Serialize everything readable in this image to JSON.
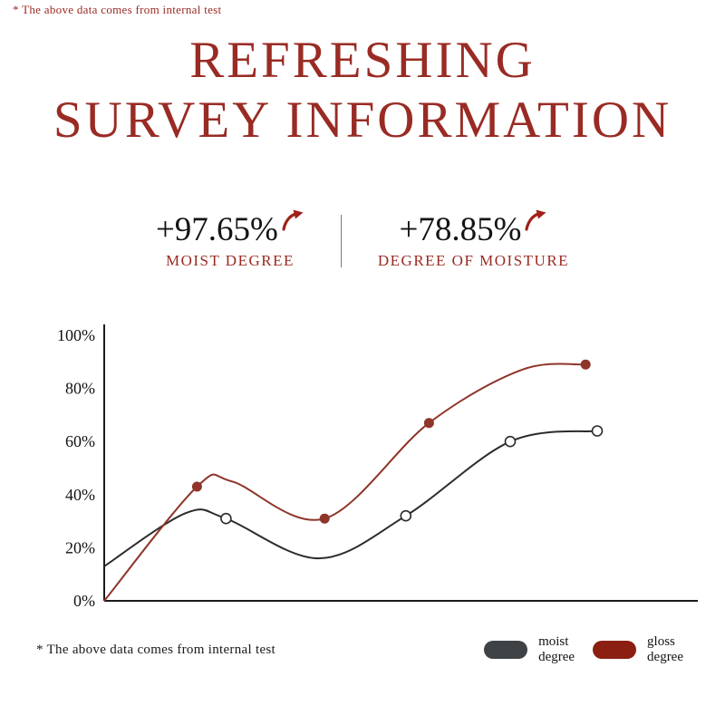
{
  "top_note": "* The above data comes from internal test",
  "title": {
    "line1": "REFRESHING",
    "line2": "SURVEY INFORMATION"
  },
  "colors": {
    "accent": "#992b24",
    "arrow": "#a02118",
    "text": "#141414"
  },
  "stats": [
    {
      "value": "+97.65%",
      "label": "MOIST DEGREE"
    },
    {
      "value": "+78.85%",
      "label": "DEGREE OF MOISTURE"
    }
  ],
  "footnote": "*  The above data comes from internal test",
  "legend": [
    {
      "line1": "moist",
      "line2": "degree",
      "color": "#3f4245"
    },
    {
      "line1": "gloss",
      "line2": "degree",
      "color": "#8b1f12"
    }
  ],
  "chart_data": {
    "type": "line",
    "title": "",
    "xlabel": "",
    "ylabel": "",
    "ylim": [
      0,
      100
    ],
    "grid": false,
    "legend_position": "bottom-right",
    "axis_color": "#1a1a1a",
    "yticks": [
      {
        "label": "0%",
        "value": 0
      },
      {
        "label": "20%",
        "value": 20
      },
      {
        "label": "40%",
        "value": 40
      },
      {
        "label": "60%",
        "value": 60
      },
      {
        "label": "80%",
        "value": 80
      },
      {
        "label": "100%",
        "value": 100
      }
    ],
    "series": [
      {
        "id": "moist",
        "name": "moist degree",
        "color": "#2b2b2b",
        "marker": "open",
        "points": [
          {
            "x": 0,
            "y": 13,
            "dot": false
          },
          {
            "x": 14,
            "y": 33,
            "dot": false
          },
          {
            "x": 21,
            "y": 31,
            "dot": true
          },
          {
            "x": 37,
            "y": 16,
            "dot": false
          },
          {
            "x": 52,
            "y": 32,
            "dot": true
          },
          {
            "x": 70,
            "y": 60,
            "dot": true
          },
          {
            "x": 85,
            "y": 64,
            "dot": true
          }
        ]
      },
      {
        "id": "gloss",
        "name": "gloss degree",
        "color": "#8f352a",
        "marker": "filled",
        "points": [
          {
            "x": 0,
            "y": 0,
            "dot": false
          },
          {
            "x": 16,
            "y": 43,
            "dot": true
          },
          {
            "x": 22,
            "y": 45,
            "dot": false
          },
          {
            "x": 38,
            "y": 31,
            "dot": true
          },
          {
            "x": 56,
            "y": 67,
            "dot": true
          },
          {
            "x": 72,
            "y": 87,
            "dot": false
          },
          {
            "x": 83,
            "y": 89,
            "dot": true
          }
        ]
      }
    ]
  }
}
